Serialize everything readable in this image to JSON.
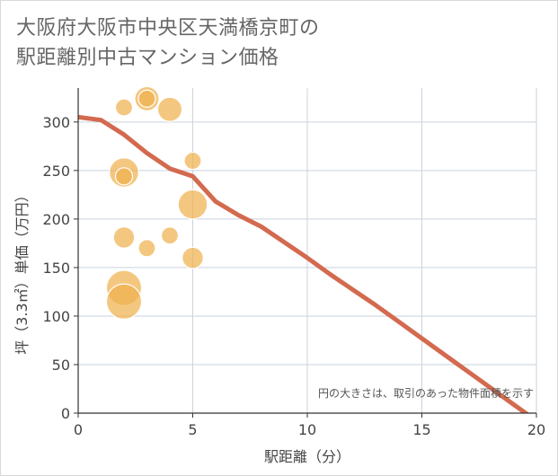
{
  "chart_data": {
    "type": "scatter",
    "title": [
      "大阪府大阪市中央区天満橋京町の",
      "駅距離別中古マンション価格"
    ],
    "xlabel": "駅距離（分）",
    "ylabel": "坪（3.3㎡）単価（万円）",
    "xlim": [
      0,
      20
    ],
    "ylim": [
      0,
      335
    ],
    "xticks": [
      0,
      5,
      10,
      15,
      20
    ],
    "yticks": [
      0,
      50,
      100,
      150,
      200,
      250,
      300
    ],
    "xtick_labels": [
      "0",
      "5",
      "10",
      "15",
      "20"
    ],
    "ytick_labels": [
      "0",
      "50",
      "100",
      "150",
      "200",
      "250",
      "300"
    ],
    "grid": true,
    "note": "円の大きさは、取引のあった物件面積を示す",
    "bubble_color": "#f0b24f",
    "line_color": "#d36a4f",
    "points": [
      {
        "x": 2,
        "y": 315,
        "size": 1
      },
      {
        "x": 3,
        "y": 324,
        "size": 3
      },
      {
        "x": 3,
        "y": 324,
        "size": 1
      },
      {
        "x": 4,
        "y": 313,
        "size": 3
      },
      {
        "x": 5,
        "y": 260,
        "size": 1
      },
      {
        "x": 2,
        "y": 248,
        "size": 5
      },
      {
        "x": 2,
        "y": 244,
        "size": 1
      },
      {
        "x": 5,
        "y": 215,
        "size": 5
      },
      {
        "x": 2,
        "y": 181,
        "size": 2
      },
      {
        "x": 4,
        "y": 183,
        "size": 1
      },
      {
        "x": 3,
        "y": 170,
        "size": 1
      },
      {
        "x": 5,
        "y": 160,
        "size": 2
      },
      {
        "x": 2,
        "y": 129,
        "size": 8
      },
      {
        "x": 2,
        "y": 115,
        "size": 8
      }
    ],
    "trend": {
      "name": "trend",
      "x": [
        0,
        1,
        2,
        3,
        4,
        5,
        6,
        7,
        8,
        9,
        10,
        11,
        12,
        13,
        14,
        15,
        16,
        17,
        18,
        19,
        20
      ],
      "y": [
        305,
        302,
        287,
        268,
        252,
        244,
        218,
        204,
        192,
        176,
        160,
        143,
        127,
        111,
        94,
        77,
        60,
        43,
        26,
        9,
        -8
      ]
    }
  }
}
